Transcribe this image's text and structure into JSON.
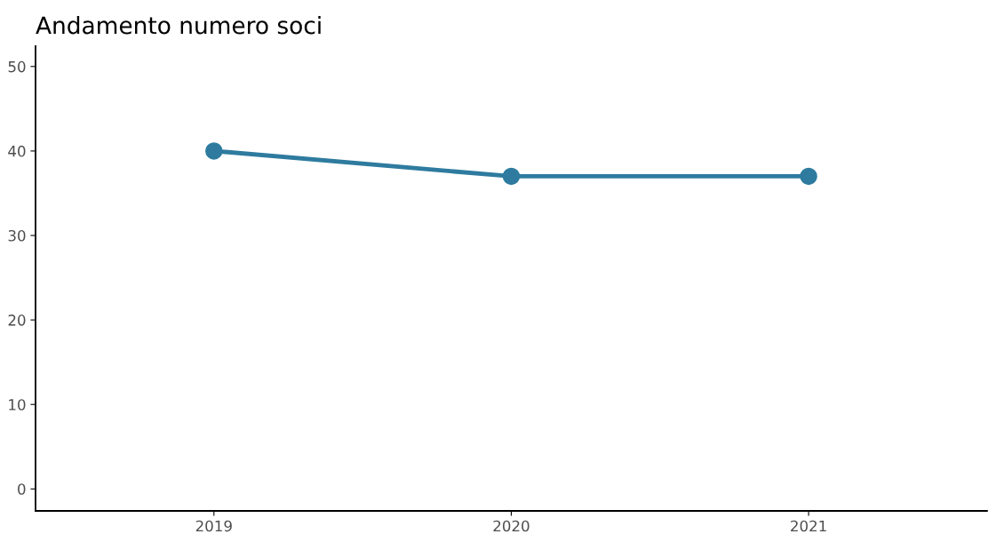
{
  "chart_data": {
    "type": "line",
    "title": "Andamento numero soci",
    "categories": [
      "2019",
      "2020",
      "2021"
    ],
    "series": [
      {
        "color": "#2e7b9f",
        "values": [
          40,
          37,
          37
        ]
      }
    ],
    "ylim": [
      -2.6,
      52.4
    ],
    "yticks": [
      0,
      10,
      20,
      30,
      40,
      50
    ],
    "grid": false,
    "marker": "circle",
    "line_style": "solid"
  }
}
